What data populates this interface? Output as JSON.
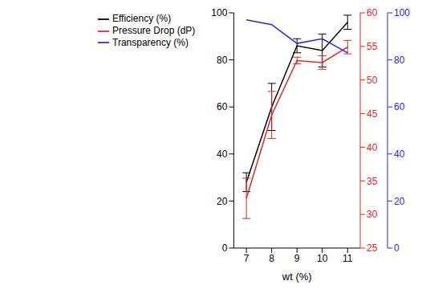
{
  "chart_data": {
    "type": "line",
    "x_label": "wt (%)",
    "x": [
      7,
      8,
      9,
      10,
      11
    ],
    "xlim": [
      6.5,
      11.5
    ],
    "xticks": [
      7,
      8,
      9,
      10,
      11
    ],
    "ylim": [
      0,
      100
    ],
    "yticks": [
      0,
      20,
      40,
      60,
      80,
      100
    ],
    "y2lim": [
      25,
      60
    ],
    "y2ticks": [
      25,
      30,
      35,
      40,
      45,
      50,
      55,
      60
    ],
    "y3lim": [
      0,
      100
    ],
    "y3ticks": [
      0,
      20,
      40,
      60,
      80,
      100
    ],
    "grid": false,
    "legend": "upper left",
    "series": [
      {
        "name": "Efficiency (%)",
        "color": "#000000",
        "axis": "y",
        "marker": "none",
        "values": [
          28,
          60,
          86,
          84,
          96
        ],
        "errors": [
          4,
          10,
          3,
          7,
          3
        ]
      },
      {
        "name": "Pressure Drop (dP)",
        "color": "#e8251f",
        "axis": "y2",
        "marker": "none",
        "values": [
          32.4,
          44.8,
          52.9,
          52.6,
          54.9
        ],
        "errors": [
          3,
          3.5,
          0.5,
          1,
          1
        ]
      },
      {
        "name": "Transparency (%)",
        "color": "#2b2bd0",
        "axis": "y3",
        "marker": "none",
        "values": [
          97,
          95,
          87,
          89,
          83
        ]
      }
    ]
  }
}
